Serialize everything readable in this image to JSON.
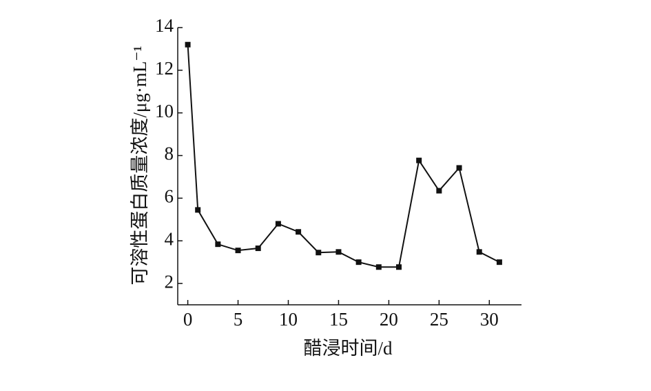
{
  "chart_data": {
    "type": "line",
    "x_label": "醋浸时间/d",
    "y_label": "可溶性蛋白质量浓度/μg·mL⁻¹",
    "x": [
      0,
      1,
      3,
      5,
      7,
      9,
      11,
      13,
      15,
      17,
      19,
      21,
      23,
      25,
      27,
      29,
      31
    ],
    "series": [
      {
        "color": "#111111",
        "values": [
          13.2,
          5.45,
          3.84,
          3.55,
          3.65,
          4.8,
          4.42,
          3.45,
          3.48,
          3.0,
          2.77,
          2.77,
          7.77,
          6.35,
          7.42,
          3.48,
          3.0
        ]
      }
    ],
    "xlim": [
      -1,
      33.2
    ],
    "xticks": [
      0,
      5,
      10,
      15,
      20,
      25,
      30
    ],
    "ylim": [
      1,
      14
    ],
    "yticks": [
      2,
      4,
      6,
      8,
      10,
      12,
      14
    ]
  }
}
